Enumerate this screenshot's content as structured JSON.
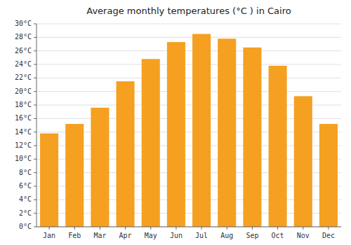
{
  "chart_data": {
    "type": "bar",
    "title": "Average monthly temperatures (°C ) in Cairo",
    "categories": [
      "Jan",
      "Feb",
      "Mar",
      "Apr",
      "May",
      "Jun",
      "Jul",
      "Aug",
      "Sep",
      "Oct",
      "Nov",
      "Dec"
    ],
    "values": [
      13.8,
      15.2,
      17.6,
      21.5,
      24.8,
      27.3,
      28.5,
      27.8,
      26.5,
      23.8,
      19.3,
      15.2
    ],
    "color": "#F5A020",
    "ylim": [
      0,
      30
    ],
    "yticks": [
      {
        "value": 0,
        "label": "0°C"
      },
      {
        "value": 2,
        "label": "2°C"
      },
      {
        "value": 4,
        "label": "4°C"
      },
      {
        "value": 6,
        "label": "6°C"
      },
      {
        "value": 8,
        "label": "8°C"
      },
      {
        "value": 10,
        "label": "10°C"
      },
      {
        "value": 12,
        "label": "12°C"
      },
      {
        "value": 14,
        "label": "14°C"
      },
      {
        "value": 16,
        "label": "16°C"
      },
      {
        "value": 18,
        "label": "18°C"
      },
      {
        "value": 20,
        "label": "20°C"
      },
      {
        "value": 22,
        "label": "22°C"
      },
      {
        "value": 24,
        "label": "24°C"
      },
      {
        "value": 26,
        "label": "26°C"
      },
      {
        "value": 28,
        "label": "28°C"
      },
      {
        "value": 30,
        "label": "30°C"
      }
    ],
    "grid": true
  }
}
